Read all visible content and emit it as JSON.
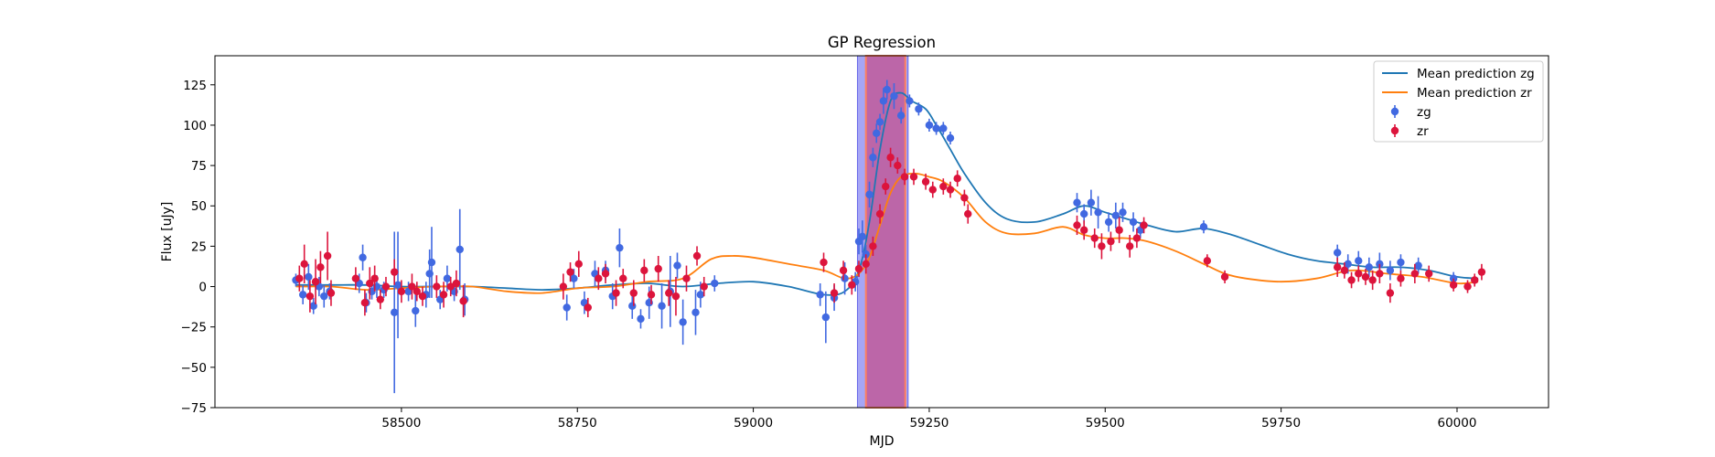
{
  "chart_data": {
    "type": "scatter",
    "title": "GP Regression",
    "xlabel": "MJD",
    "ylabel": "Flux [uJy]",
    "xlim": [
      58235,
      60130
    ],
    "ylim": [
      -75,
      143
    ],
    "xticks": [
      58500,
      58750,
      59000,
      59250,
      59500,
      59750,
      60000
    ],
    "yticks": [
      -75,
      -50,
      -25,
      0,
      25,
      50,
      75,
      100,
      125
    ],
    "grid": false,
    "legend_position": "top-right",
    "legend": [
      "Mean prediction zg",
      "Mean prediction zr",
      "zg",
      "zr"
    ],
    "colors": {
      "mean_zg": "#1f77b4",
      "mean_zr": "#ff7f0e",
      "zg_points": "#4169e1",
      "zr_points": "#dc143c",
      "band_zg_fill": "#6b6bf0",
      "band_zr_fill": "#c05a9a",
      "band_zr_edge": "#ff8060"
    },
    "shaded_regions": [
      {
        "band": "zg",
        "x": [
          59148,
          59220
        ]
      },
      {
        "band": "zr",
        "x": [
          59160,
          59216
        ]
      }
    ],
    "series": [
      {
        "name": "Mean prediction zg",
        "kind": "line",
        "x": [
          58350,
          58400,
          58450,
          58500,
          58550,
          58600,
          58650,
          58700,
          58750,
          58800,
          58850,
          58900,
          58950,
          59000,
          59050,
          59100,
          59130,
          59150,
          59165,
          59180,
          59195,
          59210,
          59225,
          59245,
          59260,
          59280,
          59300,
          59330,
          59360,
          59400,
          59440,
          59470,
          59500,
          59530,
          59560,
          59600,
          59640,
          59680,
          59720,
          59760,
          59800,
          59840,
          59880,
          59920,
          59960,
          60000,
          60030
        ],
        "y": [
          1,
          1,
          1,
          0,
          0,
          0,
          -1,
          -2,
          -1,
          1,
          2,
          0,
          2,
          3,
          0,
          -5,
          -3,
          10,
          40,
          85,
          115,
          120,
          115,
          110,
          100,
          85,
          70,
          52,
          42,
          40,
          45,
          50,
          46,
          42,
          38,
          34,
          36,
          32,
          26,
          20,
          16,
          14,
          12,
          12,
          10,
          6,
          5
        ]
      },
      {
        "name": "Mean prediction zr",
        "kind": "line",
        "x": [
          58350,
          58400,
          58450,
          58500,
          58550,
          58600,
          58650,
          58700,
          58750,
          58800,
          58850,
          58900,
          58940,
          58970,
          59000,
          59050,
          59100,
          59130,
          59150,
          59165,
          59180,
          59195,
          59210,
          59230,
          59250,
          59270,
          59300,
          59330,
          59360,
          59400,
          59440,
          59470,
          59500,
          59530,
          59560,
          59600,
          59640,
          59670,
          59700,
          59750,
          59800,
          59850,
          59900,
          59950,
          60000,
          60030
        ],
        "y": [
          0,
          0,
          -2,
          -1,
          0,
          0,
          -3,
          -4,
          -1,
          0,
          3,
          5,
          17,
          19,
          18,
          14,
          10,
          5,
          8,
          18,
          38,
          58,
          68,
          70,
          68,
          65,
          55,
          40,
          33,
          33,
          37,
          32,
          30,
          30,
          28,
          22,
          14,
          8,
          5,
          3,
          5,
          10,
          8,
          6,
          2,
          3
        ]
      },
      {
        "name": "zg",
        "kind": "errorbar",
        "points": [
          [
            58350,
            4,
            4
          ],
          [
            58360,
            -5,
            6
          ],
          [
            58368,
            6,
            8
          ],
          [
            58375,
            -12,
            5
          ],
          [
            58383,
            0,
            6
          ],
          [
            58390,
            -6,
            7
          ],
          [
            58398,
            -3,
            5
          ],
          [
            58440,
            2,
            6
          ],
          [
            58445,
            18,
            8
          ],
          [
            58450,
            -10,
            6
          ],
          [
            58458,
            -3,
            5
          ],
          [
            58465,
            0,
            7
          ],
          [
            58475,
            -2,
            5
          ],
          [
            58490,
            -16,
            50
          ],
          [
            58495,
            1,
            33
          ],
          [
            58510,
            -3,
            6
          ],
          [
            58520,
            -15,
            10
          ],
          [
            58535,
            -5,
            8
          ],
          [
            58540,
            8,
            15
          ],
          [
            58543,
            15,
            22
          ],
          [
            58555,
            -8,
            6
          ],
          [
            58565,
            5,
            8
          ],
          [
            58575,
            -3,
            6
          ],
          [
            58583,
            23,
            25
          ],
          [
            58590,
            -8,
            10
          ],
          [
            58735,
            -13,
            8
          ],
          [
            58745,
            5,
            6
          ],
          [
            58760,
            -10,
            7
          ],
          [
            58775,
            8,
            8
          ],
          [
            58790,
            10,
            6
          ],
          [
            58800,
            -6,
            8
          ],
          [
            58810,
            24,
            12
          ],
          [
            58828,
            -12,
            8
          ],
          [
            58840,
            -20,
            6
          ],
          [
            58852,
            -10,
            10
          ],
          [
            58870,
            -12,
            14
          ],
          [
            58882,
            -3,
            22
          ],
          [
            58892,
            13,
            8
          ],
          [
            58900,
            -22,
            14
          ],
          [
            58918,
            -16,
            14
          ],
          [
            58925,
            -5,
            8
          ],
          [
            58945,
            2,
            5
          ],
          [
            59095,
            -5,
            7
          ],
          [
            59103,
            -19,
            16
          ],
          [
            59115,
            -7,
            8
          ],
          [
            59130,
            5,
            10
          ],
          [
            59145,
            3,
            6
          ],
          [
            59150,
            28,
            8
          ],
          [
            59155,
            31,
            10
          ],
          [
            59160,
            20,
            6
          ],
          [
            59165,
            57,
            8
          ],
          [
            59170,
            80,
            6
          ],
          [
            59175,
            95,
            6
          ],
          [
            59180,
            102,
            5
          ],
          [
            59185,
            115,
            8
          ],
          [
            59190,
            122,
            6
          ],
          [
            59200,
            118,
            8
          ],
          [
            59210,
            106,
            5
          ],
          [
            59222,
            115,
            4
          ],
          [
            59235,
            110,
            4
          ],
          [
            59250,
            100,
            4
          ],
          [
            59260,
            98,
            4
          ],
          [
            59270,
            98,
            4
          ],
          [
            59280,
            92,
            4
          ],
          [
            59460,
            52,
            6
          ],
          [
            59470,
            45,
            6
          ],
          [
            59480,
            52,
            8
          ],
          [
            59490,
            46,
            10
          ],
          [
            59505,
            40,
            6
          ],
          [
            59515,
            44,
            8
          ],
          [
            59525,
            46,
            6
          ],
          [
            59540,
            40,
            6
          ],
          [
            59550,
            35,
            5
          ],
          [
            59640,
            37,
            4
          ],
          [
            59830,
            21,
            5
          ],
          [
            59845,
            14,
            6
          ],
          [
            59860,
            16,
            6
          ],
          [
            59875,
            12,
            6
          ],
          [
            59890,
            14,
            7
          ],
          [
            59905,
            10,
            6
          ],
          [
            59920,
            15,
            5
          ],
          [
            59945,
            13,
            5
          ],
          [
            59995,
            5,
            4
          ]
        ]
      },
      {
        "name": "zr",
        "kind": "errorbar",
        "points": [
          [
            58355,
            5,
            8
          ],
          [
            58362,
            14,
            12
          ],
          [
            58370,
            -6,
            10
          ],
          [
            58378,
            3,
            14
          ],
          [
            58385,
            12,
            10
          ],
          [
            58395,
            19,
            15
          ],
          [
            58400,
            -4,
            8
          ],
          [
            58435,
            5,
            7
          ],
          [
            58448,
            -10,
            8
          ],
          [
            58455,
            2,
            10
          ],
          [
            58462,
            5,
            8
          ],
          [
            58470,
            -8,
            6
          ],
          [
            58478,
            0,
            6
          ],
          [
            58490,
            9,
            8
          ],
          [
            58500,
            -3,
            7
          ],
          [
            58515,
            0,
            8
          ],
          [
            58522,
            -3,
            6
          ],
          [
            58530,
            -6,
            6
          ],
          [
            58550,
            0,
            7
          ],
          [
            58560,
            -5,
            8
          ],
          [
            58570,
            0,
            6
          ],
          [
            58578,
            2,
            8
          ],
          [
            58588,
            -9,
            10
          ],
          [
            58730,
            0,
            8
          ],
          [
            58740,
            9,
            6
          ],
          [
            58752,
            14,
            8
          ],
          [
            58765,
            -13,
            6
          ],
          [
            58780,
            5,
            7
          ],
          [
            58790,
            8,
            6
          ],
          [
            58805,
            -4,
            8
          ],
          [
            58815,
            5,
            6
          ],
          [
            58830,
            -4,
            8
          ],
          [
            58845,
            10,
            7
          ],
          [
            58855,
            -5,
            6
          ],
          [
            58865,
            11,
            8
          ],
          [
            58880,
            -4,
            8
          ],
          [
            58890,
            -6,
            12
          ],
          [
            58905,
            5,
            8
          ],
          [
            58920,
            19,
            6
          ],
          [
            58930,
            0,
            6
          ],
          [
            59100,
            15,
            6
          ],
          [
            59115,
            -4,
            6
          ],
          [
            59128,
            10,
            6
          ],
          [
            59140,
            1,
            6
          ],
          [
            59150,
            11,
            5
          ],
          [
            59160,
            14,
            6
          ],
          [
            59170,
            25,
            6
          ],
          [
            59180,
            45,
            6
          ],
          [
            59188,
            62,
            5
          ],
          [
            59195,
            80,
            6
          ],
          [
            59205,
            75,
            5
          ],
          [
            59215,
            68,
            5
          ],
          [
            59228,
            68,
            5
          ],
          [
            59245,
            65,
            5
          ],
          [
            59255,
            60,
            5
          ],
          [
            59270,
            62,
            5
          ],
          [
            59280,
            60,
            5
          ],
          [
            59290,
            67,
            5
          ],
          [
            59300,
            55,
            5
          ],
          [
            59305,
            45,
            6
          ],
          [
            59460,
            38,
            6
          ],
          [
            59470,
            35,
            6
          ],
          [
            59485,
            30,
            6
          ],
          [
            59495,
            25,
            8
          ],
          [
            59508,
            28,
            6
          ],
          [
            59520,
            35,
            8
          ],
          [
            59535,
            25,
            7
          ],
          [
            59545,
            30,
            6
          ],
          [
            59555,
            38,
            5
          ],
          [
            59645,
            16,
            4
          ],
          [
            59670,
            6,
            4
          ],
          [
            59830,
            12,
            6
          ],
          [
            59840,
            10,
            5
          ],
          [
            59850,
            4,
            5
          ],
          [
            59860,
            8,
            5
          ],
          [
            59870,
            6,
            5
          ],
          [
            59880,
            4,
            6
          ],
          [
            59890,
            8,
            6
          ],
          [
            59905,
            -4,
            6
          ],
          [
            59920,
            5,
            5
          ],
          [
            59940,
            8,
            6
          ],
          [
            59960,
            8,
            5
          ],
          [
            59995,
            1,
            4
          ],
          [
            60015,
            0,
            4
          ],
          [
            60025,
            4,
            4
          ],
          [
            60035,
            9,
            5
          ]
        ]
      }
    ]
  }
}
